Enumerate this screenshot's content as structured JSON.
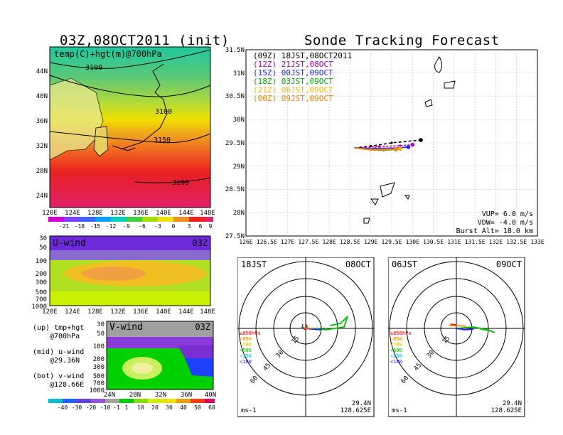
{
  "left_title": "03Z,08OCT2011 (init)",
  "right_title": "Sonde Tracking Forecast",
  "map_panel": {
    "label": "temp(C)+hgt(m)@700hPa",
    "lat_ticks": [
      "44N",
      "40N",
      "36N",
      "32N",
      "28N",
      "24N"
    ],
    "lon_ticks": [
      "120E",
      "124E",
      "128E",
      "132E",
      "136E",
      "140E",
      "144E",
      "148E"
    ],
    "contours": [
      "3100",
      "3100",
      "3150",
      "3200"
    ],
    "colorbar_labels": [
      "-21",
      "-18",
      "-15",
      "-12",
      "-9",
      "-6",
      "-3",
      "0",
      "3",
      "6",
      "9"
    ]
  },
  "u_panel": {
    "label": "U-wind",
    "time": "03Z",
    "p_ticks": [
      "30",
      "50",
      "100",
      "200",
      "300",
      "500",
      "700",
      "1000"
    ],
    "lon_ticks": [
      "120E",
      "124E",
      "128E",
      "132E",
      "136E",
      "140E",
      "144E",
      "148E"
    ]
  },
  "v_panel": {
    "label": "V-wind",
    "time": "03Z",
    "p_ticks": [
      "30",
      "50",
      "100",
      "200",
      "300",
      "500",
      "700",
      "1000"
    ],
    "lat_ticks": [
      "24N",
      "28N",
      "32N",
      "36N",
      "40N"
    ],
    "colorbar_labels": [
      "-40",
      "-30",
      "-20",
      "-10",
      "-1",
      "1",
      "10",
      "20",
      "30",
      "40",
      "50",
      "60"
    ]
  },
  "notes": [
    {
      "a": "(up) tmp+hgt",
      "b": "@700hPa"
    },
    {
      "a": "(mid) u-wind",
      "b": "@29.36N"
    },
    {
      "a": "(bot) v-wind",
      "b": "@128.66E"
    }
  ],
  "track_panel": {
    "lat_ticks": [
      "31.5N",
      "31N",
      "30.5N",
      "30N",
      "29.5N",
      "29N",
      "28.5N",
      "28N",
      "27.5N"
    ],
    "lon_ticks": [
      "126E",
      "126.5E",
      "127E",
      "127.5E",
      "128E",
      "128.5E",
      "129E",
      "129.5E",
      "130E",
      "130.5E",
      "131E",
      "131.5E",
      "132E",
      "132.5E",
      "133E"
    ],
    "legend": [
      {
        "text": "(09Z) 18JST,08OCT2011",
        "color": "#000000"
      },
      {
        "text": "(12Z) 21JST,08OCT",
        "color": "#b000b0"
      },
      {
        "text": "(15Z) 00JST,09OCT",
        "color": "#2020ff"
      },
      {
        "text": "(18Z) 03JST,09OCT",
        "color": "#00b000"
      },
      {
        "text": "(21Z) 06JST,09OCT",
        "color": "#ffb000"
      },
      {
        "text": "(00Z) 09JST,09OCT",
        "color": "#ff8000"
      }
    ],
    "info": [
      "VUP= 6.0 m/s",
      "VDW= -4.0 m/s",
      "Burst Alt= 18.0 km"
    ]
  },
  "hodo_left": {
    "time_label": "18JST",
    "date_label": "08OCT",
    "ring_labels": [
      "15",
      "30",
      "45",
      "60"
    ],
    "levels": [
      {
        "text": "≥850hPa",
        "color": "#ff0000"
      },
      {
        "text": "<850",
        "color": "#ff8000"
      },
      {
        "text": "<700",
        "color": "#e0c000"
      },
      {
        "text": "<500",
        "color": "#00c000"
      },
      {
        "text": "<250",
        "color": "#00b0ff"
      },
      {
        "text": "<100",
        "color": "#2020ff"
      }
    ],
    "units": "ms-1",
    "lat": "29.4N",
    "lon": "128.625E"
  },
  "hodo_right": {
    "time_label": "06JST",
    "date_label": "09OCT",
    "ring_labels": [
      "15",
      "30",
      "45",
      "60"
    ],
    "levels": [
      {
        "text": "≥850hPa",
        "color": "#ff0000"
      },
      {
        "text": "<850",
        "color": "#ff8000"
      },
      {
        "text": "<700",
        "color": "#e0c000"
      },
      {
        "text": "<500",
        "color": "#00c000"
      },
      {
        "text": "<250",
        "color": "#00b0ff"
      },
      {
        "text": "<100",
        "color": "#2020ff"
      }
    ],
    "units": "ms-1",
    "lat": "29.4N",
    "lon": "128.625E"
  },
  "chart_data": [
    {
      "type": "heatmap",
      "title": "temp(C)+hgt(m)@700hPa",
      "xlim": [
        120,
        150
      ],
      "ylim": [
        22,
        48
      ],
      "colorbar": [
        -21,
        -18,
        -15,
        -12,
        -9,
        -6,
        -3,
        0,
        3,
        6,
        9
      ]
    },
    {
      "type": "line",
      "title": "Sonde Tracking Forecast",
      "xlim": [
        126,
        133
      ],
      "ylim": [
        27.5,
        31.5
      ],
      "series": [
        {
          "name": "(09Z) 18JST,08OCT2011",
          "points": [
            [
              128.6,
              29.39
            ],
            [
              129.0,
              29.43
            ],
            [
              129.5,
              29.5
            ],
            [
              130.2,
              29.56
            ]
          ]
        },
        {
          "name": "(12Z) 21JST,08OCT",
          "points": [
            [
              128.6,
              29.39
            ],
            [
              129.2,
              29.42
            ],
            [
              129.7,
              29.44
            ],
            [
              130.0,
              29.46
            ]
          ]
        },
        {
          "name": "(15Z) 00JST,09OCT",
          "points": [
            [
              128.6,
              29.39
            ],
            [
              129.1,
              29.38
            ],
            [
              129.6,
              29.39
            ],
            [
              129.9,
              29.41
            ]
          ]
        },
        {
          "name": "(18Z) 03JST,09OCT",
          "points": [
            [
              128.6,
              29.39
            ],
            [
              129.0,
              29.35
            ],
            [
              129.3,
              29.34
            ],
            [
              129.6,
              29.36
            ]
          ]
        },
        {
          "name": "(21Z) 06JST,09OCT",
          "points": [
            [
              128.6,
              29.39
            ],
            [
              129.0,
              29.36
            ],
            [
              129.4,
              29.36
            ],
            [
              129.7,
              29.37
            ]
          ]
        },
        {
          "name": "(00Z) 09JST,09OCT",
          "points": [
            [
              128.6,
              29.39
            ],
            [
              129.0,
              29.35
            ],
            [
              129.3,
              29.35
            ],
            [
              129.6,
              29.37
            ]
          ]
        }
      ]
    }
  ]
}
